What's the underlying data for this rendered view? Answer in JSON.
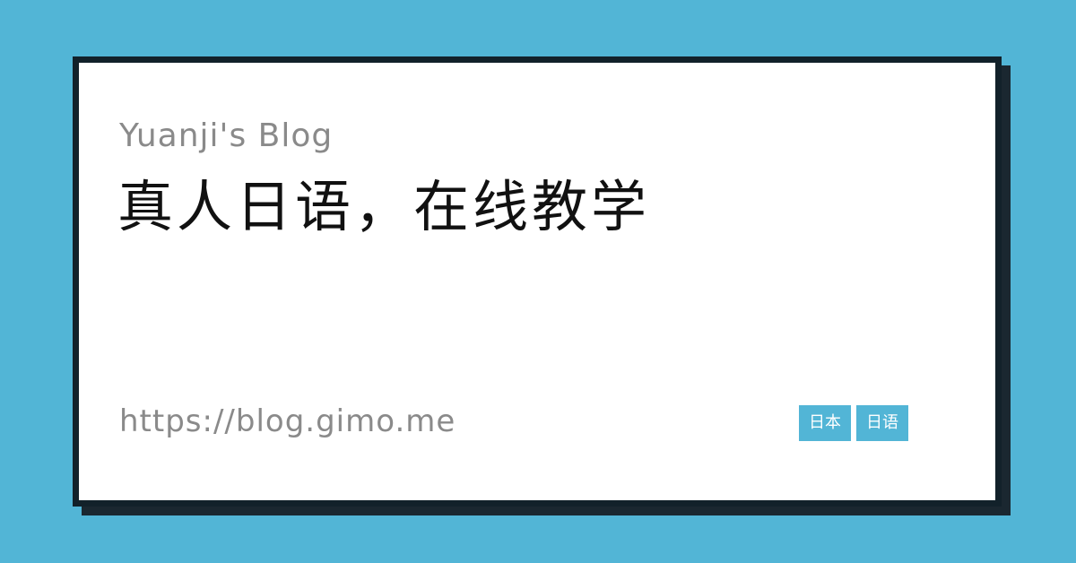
{
  "site_name": "Yuanji's Blog",
  "title": "真人日语，在线教学",
  "url": "https://blog.gimo.me",
  "tags": [
    "日本",
    "日语"
  ],
  "colors": {
    "background": "#52b5d6",
    "card": "#ffffff",
    "border": "#12212a",
    "tag_background": "#52b5d6",
    "muted_text": "#8a8a8a",
    "title_text": "#111111"
  }
}
